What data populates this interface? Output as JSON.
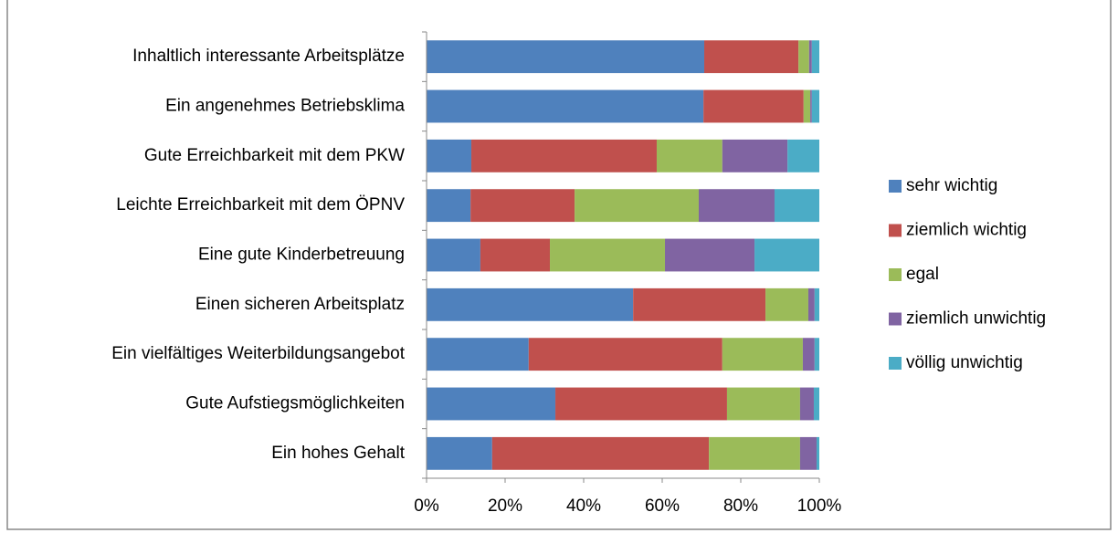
{
  "chart_data": {
    "type": "stacked-bar-horizontal",
    "categories": [
      "Inhaltlich interessante Arbeitsplätze",
      "Ein angenehmes Betriebsklima",
      "Gute Erreichbarkeit mit dem PKW",
      "Leichte Erreichbarkeit mit dem ÖPNV",
      "Eine gute Kinderbetreuung",
      "Einen sicheren Arbeitsplatz",
      "Ein vielfältiges Weiterbildungsangebot",
      "Gute Aufstiegsmöglichkeiten",
      "Ein hohes Gehalt"
    ],
    "series": [
      {
        "name": "sehr wichtig",
        "color": "#4f81bd",
        "values": [
          70.7,
          70.5,
          11.4,
          11.2,
          13.7,
          52.6,
          26.0,
          32.8,
          16.7
        ]
      },
      {
        "name": "ziemlich wichtig",
        "color": "#c0504d",
        "values": [
          24.0,
          25.5,
          47.2,
          26.5,
          17.7,
          33.7,
          49.3,
          43.7,
          55.2
        ]
      },
      {
        "name": "egal",
        "color": "#9bbb59",
        "values": [
          2.7,
          1.7,
          16.7,
          31.6,
          29.3,
          10.9,
          20.5,
          18.6,
          23.2
        ]
      },
      {
        "name": "ziemlich unwichtig",
        "color": "#8064a2",
        "values": [
          0.7,
          0.4,
          16.6,
          19.3,
          22.8,
          1.6,
          3.0,
          3.5,
          4.2
        ]
      },
      {
        "name": "völlig unwichtig",
        "color": "#4bacc6",
        "values": [
          1.9,
          1.9,
          8.1,
          11.4,
          16.5,
          1.2,
          1.2,
          1.4,
          0.7
        ]
      }
    ],
    "xlim": [
      0,
      100
    ],
    "xticks": [
      {
        "value": 0,
        "label": "0%"
      },
      {
        "value": 20,
        "label": "20%"
      },
      {
        "value": 40,
        "label": "40%"
      },
      {
        "value": 60,
        "label": "60%"
      },
      {
        "value": 80,
        "label": "80%"
      },
      {
        "value": 100,
        "label": "100%"
      }
    ],
    "legend": "right"
  }
}
